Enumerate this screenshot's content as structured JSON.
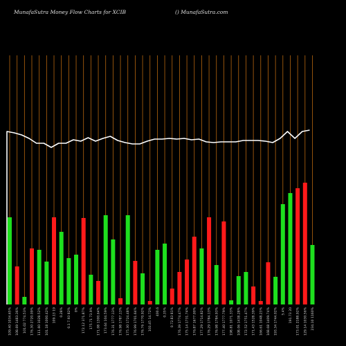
{
  "header": {
    "left": "MunafaSutra  Money Flow  Charts for XCIB",
    "right": "() MunafaSutra.com"
  },
  "colors": {
    "up": "#1ee01e",
    "down": "#ff1a1a",
    "grid": "#b8670f",
    "line": "#ffffff",
    "background": "#000000"
  },
  "chart_data": {
    "type": "bar",
    "title": "MunafaSutra  Money Flow  Charts for XCIB",
    "grid": true,
    "categories": [
      "109.40 1034.65%",
      "108.69 1483.36%",
      "101.02 774.53%",
      "176.30 2720.09%",
      "111.60 1028.52%",
      "101.18 1000.42%",
      "109.13 19",
      "0.28%",
      "0.1 7.93 82%",
      "0%",
      "172.12 371.87%",
      "175.71 73.9%",
      "171.08 1300.64%",
      "173.64 104.59%",
      "176.31 1777.13%",
      "176.98 1787.13%",
      "175.30 1724.48%",
      "176.99 1701.64%",
      "176.76 1770.92%",
      "103.45 14.72%",
      "400.6",
      "0.35%",
      "0.72.83 81%",
      "176.39 1774.47%",
      "175.14 1731.74%",
      "176.87 1677.00%",
      "177.29 1714.82%",
      "176.29 1784.13%",
      "176.98 1784.93%",
      "177.40 1777.79%",
      "198.81 1071.33%",
      "108.06 1438.28%",
      "172.52 1751.47%",
      "171.43 1528.39%",
      "166.61 1048.23%",
      "168.68 1409.74%",
      "193.34 1744.02%",
      "5.4%",
      "191.73 20",
      "173.01 2188.92%",
      "129.14 1030.56%",
      "234.10 1160%"
    ],
    "series": [
      {
        "values": [
          126,
          55,
          11,
          81,
          79,
          62,
          126,
          105,
          67,
          72,
          125,
          43,
          34,
          129,
          94,
          9,
          129,
          63,
          45,
          5,
          79,
          88,
          23,
          47,
          65,
          98,
          81,
          126,
          57,
          120,
          6,
          41,
          47,
          26,
          5,
          61,
          40,
          145,
          161,
          168,
          176,
          86
        ],
        "directions": [
          "up",
          "down",
          "up",
          "down",
          "up",
          "up",
          "down",
          "up",
          "up",
          "up",
          "down",
          "up",
          "down",
          "up",
          "up",
          "down",
          "up",
          "down",
          "up",
          "down",
          "up",
          "up",
          "down",
          "down",
          "down",
          "down",
          "up",
          "down",
          "up",
          "down",
          "up",
          "up",
          "up",
          "down",
          "down",
          "down",
          "up",
          "up",
          "up",
          "down",
          "down",
          "up"
        ]
      }
    ],
    "line_series": {
      "values": [
        250,
        248,
        245,
        240,
        233,
        233,
        227,
        233,
        233,
        238,
        236,
        241,
        236,
        240,
        243,
        237,
        234,
        232,
        232,
        236,
        239,
        239,
        240,
        239,
        240,
        238,
        239,
        235,
        234,
        235,
        235,
        235,
        237,
        237,
        237,
        236,
        234,
        240,
        250,
        240,
        250,
        252
      ]
    }
  }
}
